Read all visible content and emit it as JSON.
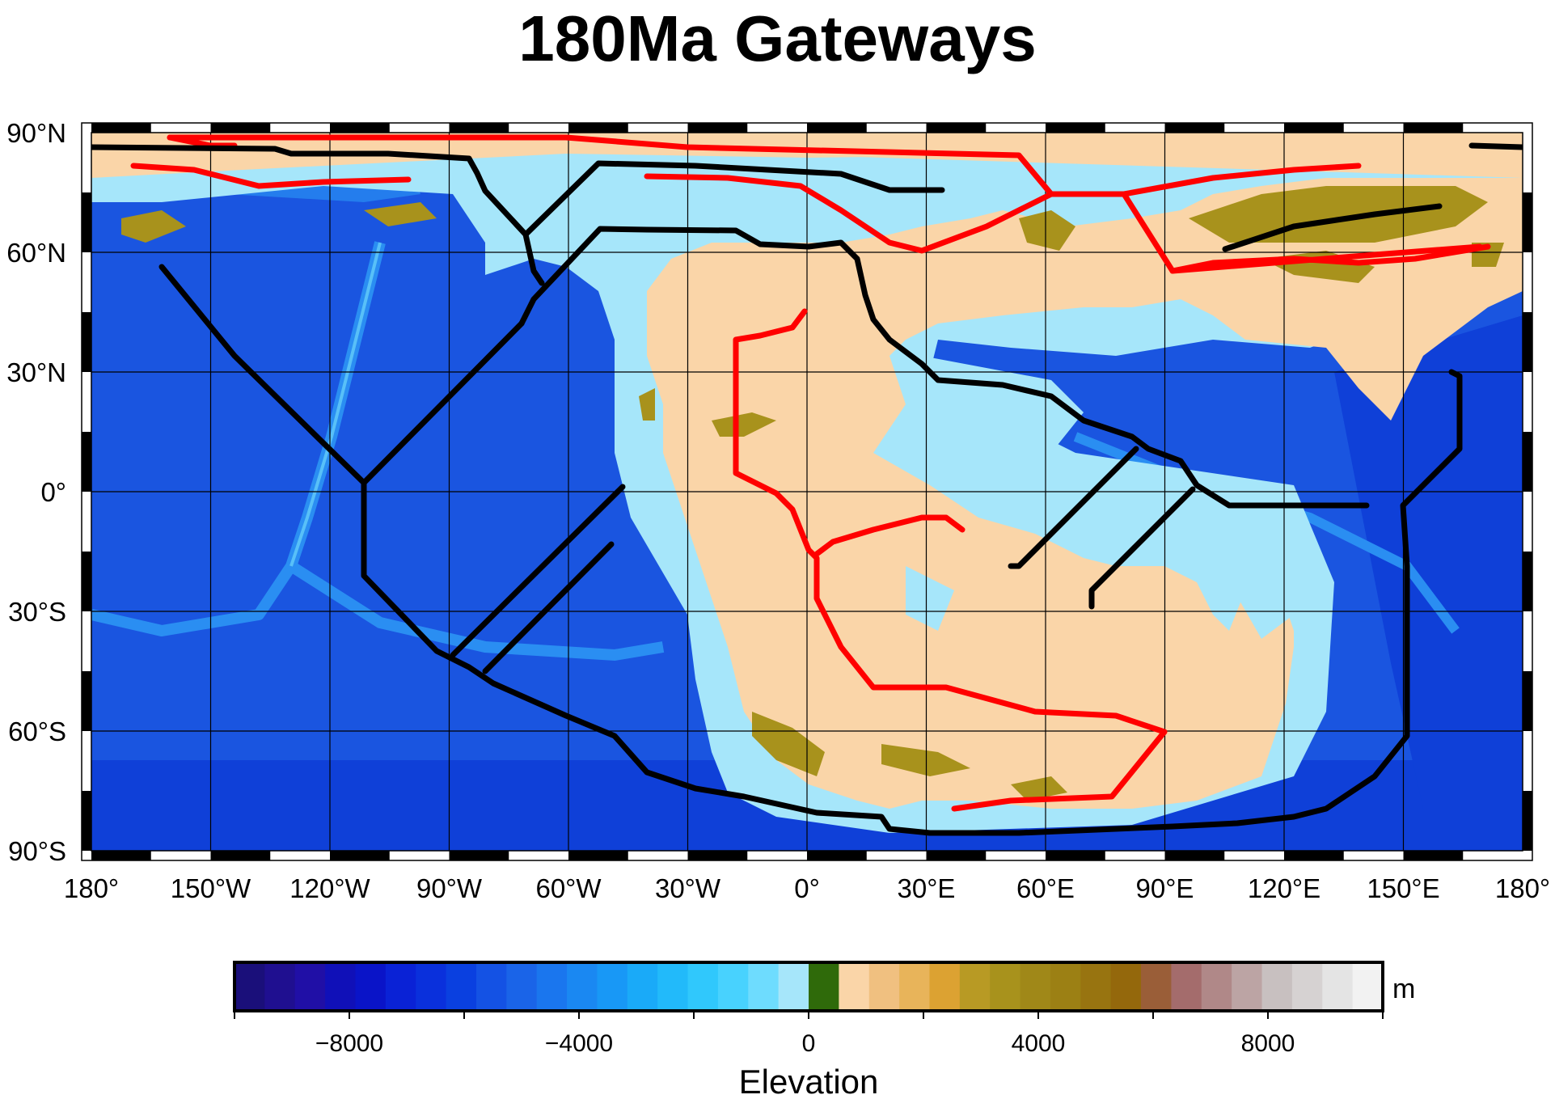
{
  "map": {
    "title": "180Ma Gateways",
    "lat_labels": [
      "90°N",
      "60°N",
      "30°N",
      "0°",
      "30°S",
      "60°S",
      "90°S"
    ],
    "lon_labels": [
      "180°",
      "150°W",
      "120°W",
      "90°W",
      "60°W",
      "30°W",
      "0°",
      "30°E",
      "60°E",
      "90°E",
      "120°E",
      "150°E",
      "180°"
    ],
    "projection": "equirectangular",
    "grid": true
  },
  "colorbar": {
    "label": "Elevation",
    "unit": "m",
    "ticks": [
      "−8000",
      "−4000",
      "0",
      "4000",
      "8000"
    ],
    "range": [
      -10000,
      10000
    ],
    "colors": [
      "#1a0f7a",
      "#1f0f90",
      "#200fa6",
      "#1010b8",
      "#0a14c8",
      "#0a22d6",
      "#0a30dc",
      "#0a40e0",
      "#1452e4",
      "#1a64e8",
      "#1a76ee",
      "#1a88f2",
      "#1898f6",
      "#1aaaf8",
      "#22bafa",
      "#30c8fc",
      "#48d2fe",
      "#6edcfe",
      "#a6e6fa",
      "#2f6a0a",
      "#fad5a8",
      "#f0c080",
      "#e8b45a",
      "#dca232",
      "#b89a24",
      "#a8921c",
      "#a08818",
      "#9c8014",
      "#987410",
      "#94680c",
      "#9a5e38",
      "#a46c6c",
      "#b08888",
      "#bca4a4",
      "#c8c0c0",
      "#d6d2d2",
      "#e4e4e4",
      "#f2f2f2"
    ]
  },
  "colors": {
    "deep_ocean": "#1a55e0",
    "shallow_shelf": "#a6e6fa",
    "land": "#fad5a8",
    "highland": "#a8921c",
    "gateway_red": "#ff0000",
    "gateway_black": "#000000"
  }
}
